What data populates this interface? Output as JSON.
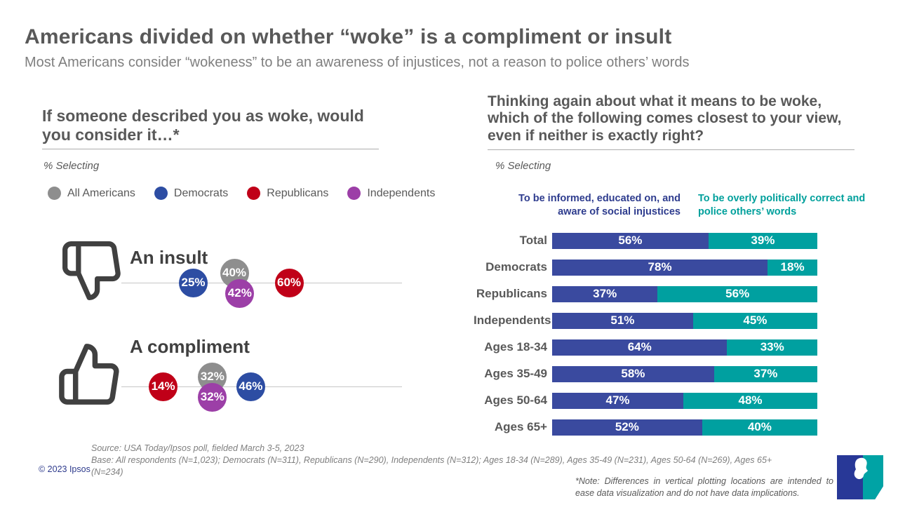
{
  "page": {
    "title": "Americans divided on whether “woke” is a compliment or insult",
    "subtitle": "Most Americans consider “wokeness” to be an awareness of injustices, not a reason to police others’ words"
  },
  "colors": {
    "navy_bar": "#3a4a9f",
    "teal_bar": "#00a0a0",
    "header_navy": "#2e3c8e",
    "header_teal": "#00a09c",
    "logo_navy": "#283897",
    "logo_teal": "#00a3a5",
    "title_gray": "#595959",
    "subtitle_gray": "#7f7f7f"
  },
  "left_chart": {
    "question": "If someone described you as woke, would you consider it…*",
    "pct_selecting": "% Selecting"
  },
  "right_chart": {
    "question": "Thinking again about what it means to be woke, which of the following comes closest to your view, even if neither is exactly right?",
    "pct_selecting": "% Selecting"
  },
  "footer": {
    "source": "Source: USA Today/Ipsos poll, fielded March 3-5, 2023",
    "base": "Base: All respondents (N=1,023); Democrats (N=311), Republicans (N=290), Independents (N=312); Ages 18-34 (N=289), Ages 35-49 (N=231), Ages 50-64 (N=269), Ages 65+ (N=234)",
    "copyright": "© 2023 Ipsos",
    "note": "*Note: Differences in vertical plotting locations are intended to ease data visualization and do not have data implications.",
    "logo_text": "Ipsos"
  },
  "chart_data": [
    {
      "type": "scatter",
      "title": "If someone described you as woke, would you consider it…*",
      "subtitle": "% Selecting",
      "unit": "%",
      "categories": [
        "An insult",
        "A compliment"
      ],
      "series": [
        {
          "name": "All Americans",
          "color": "#8e8e8e",
          "values": [
            40,
            32
          ]
        },
        {
          "name": "Democrats",
          "color": "#2d4da3",
          "values": [
            25,
            46
          ]
        },
        {
          "name": "Republicans",
          "color": "#c00018",
          "values": [
            60,
            14
          ]
        },
        {
          "name": "Independents",
          "color": "#9c3fa7",
          "values": [
            42,
            32
          ]
        }
      ],
      "xlim": [
        0,
        100
      ],
      "legend_position": "top"
    },
    {
      "type": "bar",
      "stacked": true,
      "title": "Thinking again about what it means to be woke, which of the following comes closest to your view, even if neither is exactly right?",
      "subtitle": "% Selecting",
      "unit": "%",
      "categories": [
        "Total",
        "Democrats",
        "Republicans",
        "Independents",
        "Ages 18-34",
        "Ages 35-49",
        "Ages 50-64",
        "Ages 65+"
      ],
      "series": [
        {
          "name": "To be informed, educated on, and aware of social injustices",
          "color": "#3a4a9f",
          "values": [
            56,
            78,
            37,
            51,
            64,
            58,
            47,
            52
          ]
        },
        {
          "name": "To be overly politically correct and police others’ words",
          "color": "#00a0a0",
          "values": [
            39,
            18,
            56,
            45,
            33,
            37,
            48,
            40
          ]
        }
      ]
    }
  ]
}
